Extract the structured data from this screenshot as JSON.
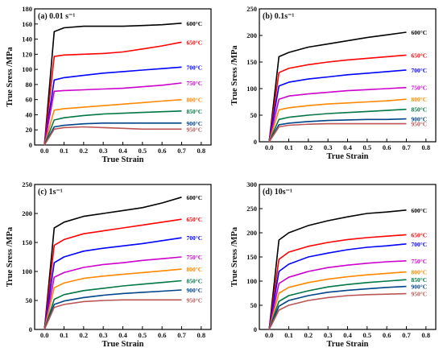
{
  "figure": {
    "series_colors": {
      "600°C": "#000000",
      "650°C": "#ff0000",
      "700°C": "#0000ff",
      "750°C": "#cc00cc",
      "800°C": "#ff8800",
      "850°C": "#007744",
      "900°C": "#004488",
      "950°C": "#bb5555"
    }
  },
  "chart_data": [
    {
      "type": "line",
      "title": "(a) 0.01 s⁻¹",
      "xlabel": "True Strain",
      "ylabel": "True Sress /MPa",
      "xlim": [
        -0.05,
        0.85
      ],
      "ylim": [
        0,
        180
      ],
      "xticks": [
        "0.0",
        "0.1",
        "0.2",
        "0.3",
        "0.4",
        "0.5",
        "0.6",
        "0.7",
        "0.8"
      ],
      "yticks": [
        "0",
        "20",
        "40",
        "60",
        "80",
        "100",
        "120",
        "140",
        "160",
        "180"
      ],
      "grid": false,
      "legend": "inline-right",
      "x": [
        0.0,
        0.05,
        0.1,
        0.2,
        0.3,
        0.4,
        0.5,
        0.6,
        0.7
      ],
      "series": [
        {
          "name": "600°C",
          "values": [
            0,
            150,
            155,
            157,
            157,
            157,
            158,
            159,
            161
          ]
        },
        {
          "name": "650°C",
          "values": [
            0,
            117,
            119,
            120,
            121,
            123,
            127,
            131,
            136
          ]
        },
        {
          "name": "700°C",
          "values": [
            0,
            86,
            89,
            92,
            95,
            97,
            99,
            101,
            103
          ]
        },
        {
          "name": "750°C",
          "values": [
            0,
            71,
            72,
            73,
            74,
            75,
            77,
            79,
            82
          ]
        },
        {
          "name": "800°C",
          "values": [
            0,
            46,
            48,
            50,
            52,
            54,
            56,
            58,
            60
          ]
        },
        {
          "name": "850°C",
          "values": [
            0,
            33,
            36,
            39,
            41,
            42,
            43,
            44,
            45
          ]
        },
        {
          "name": "900°C",
          "values": [
            0,
            24,
            26,
            28,
            29,
            29,
            29,
            29,
            29
          ]
        },
        {
          "name": "950°C",
          "values": [
            0,
            21,
            23,
            24,
            23,
            22,
            21,
            21,
            21
          ]
        }
      ]
    },
    {
      "type": "line",
      "title": "(b) 0.1s⁻¹",
      "xlabel": "True Strain",
      "ylabel": "True Sress /MPa",
      "xlim": [
        -0.05,
        0.85
      ],
      "ylim": [
        0,
        250
      ],
      "xticks": [
        "0.0",
        "0.1",
        "0.2",
        "0.3",
        "0.4",
        "0.5",
        "0.6",
        "0.7",
        "0.8"
      ],
      "yticks": [
        "0",
        "50",
        "100",
        "150",
        "200",
        "250"
      ],
      "grid": false,
      "legend": "inline-right",
      "x": [
        0.0,
        0.05,
        0.1,
        0.2,
        0.3,
        0.4,
        0.5,
        0.6,
        0.7
      ],
      "series": [
        {
          "name": "600°C",
          "values": [
            0,
            160,
            168,
            178,
            184,
            190,
            196,
            201,
            206
          ]
        },
        {
          "name": "650°C",
          "values": [
            0,
            130,
            138,
            145,
            150,
            154,
            157,
            160,
            163
          ]
        },
        {
          "name": "700°C",
          "values": [
            0,
            105,
            112,
            118,
            122,
            126,
            129,
            132,
            135
          ]
        },
        {
          "name": "750°C",
          "values": [
            0,
            80,
            86,
            90,
            93,
            96,
            98,
            100,
            102
          ]
        },
        {
          "name": "800°C",
          "values": [
            0,
            60,
            64,
            68,
            71,
            73,
            75,
            77,
            80
          ]
        },
        {
          "name": "850°C",
          "values": [
            0,
            42,
            46,
            50,
            53,
            55,
            57,
            59,
            61
          ]
        },
        {
          "name": "900°C",
          "values": [
            0,
            32,
            35,
            38,
            40,
            41,
            42,
            42,
            43
          ]
        },
        {
          "name": "950°C",
          "values": [
            0,
            28,
            31,
            33,
            34,
            34,
            34,
            34,
            34
          ]
        }
      ]
    },
    {
      "type": "line",
      "title": "(c) 1s⁻¹",
      "xlabel": "True Strain",
      "ylabel": "True Sress /MPa",
      "xlim": [
        -0.05,
        0.85
      ],
      "ylim": [
        0,
        250
      ],
      "xticks": [
        "0.0",
        "0.1",
        "0.2",
        "0.3",
        "0.4",
        "0.5",
        "0.6",
        "0.7",
        "0.8"
      ],
      "yticks": [
        "0",
        "50",
        "100",
        "150",
        "200",
        "250"
      ],
      "grid": false,
      "legend": "inline-right",
      "x": [
        0.0,
        0.05,
        0.1,
        0.2,
        0.3,
        0.4,
        0.5,
        0.6,
        0.7
      ],
      "series": [
        {
          "name": "600°C",
          "values": [
            0,
            175,
            185,
            195,
            200,
            205,
            210,
            218,
            228
          ]
        },
        {
          "name": "650°C",
          "values": [
            0,
            145,
            155,
            165,
            170,
            175,
            180,
            185,
            190
          ]
        },
        {
          "name": "700°C",
          "values": [
            0,
            115,
            125,
            135,
            140,
            144,
            148,
            153,
            158
          ]
        },
        {
          "name": "750°C",
          "values": [
            0,
            90,
            98,
            107,
            112,
            115,
            119,
            122,
            125
          ]
        },
        {
          "name": "800°C",
          "values": [
            0,
            72,
            80,
            88,
            92,
            95,
            98,
            101,
            104
          ]
        },
        {
          "name": "850°C",
          "values": [
            0,
            52,
            60,
            67,
            71,
            75,
            78,
            81,
            84
          ]
        },
        {
          "name": "900°C",
          "values": [
            0,
            43,
            49,
            55,
            59,
            62,
            64,
            66,
            68
          ]
        },
        {
          "name": "950°C",
          "values": [
            0,
            38,
            43,
            48,
            50,
            51,
            51,
            51,
            51
          ]
        }
      ]
    },
    {
      "type": "line",
      "title": "(d) 10s⁻¹",
      "xlabel": "True Strain",
      "ylabel": "True Sress /MPa",
      "xlim": [
        -0.05,
        0.85
      ],
      "ylim": [
        0,
        300
      ],
      "xticks": [
        "0.0",
        "0.1",
        "0.2",
        "0.3",
        "0.4",
        "0.5",
        "0.6",
        "0.7",
        "0.8"
      ],
      "yticks": [
        "0",
        "50",
        "100",
        "150",
        "200",
        "250",
        "300"
      ],
      "grid": false,
      "legend": "inline-right",
      "x": [
        0.0,
        0.05,
        0.1,
        0.2,
        0.3,
        0.4,
        0.5,
        0.6,
        0.7
      ],
      "series": [
        {
          "name": "600°C",
          "values": [
            0,
            185,
            200,
            215,
            225,
            233,
            240,
            243,
            247
          ]
        },
        {
          "name": "650°C",
          "values": [
            0,
            145,
            160,
            172,
            180,
            186,
            190,
            193,
            196
          ]
        },
        {
          "name": "700°C",
          "values": [
            0,
            120,
            135,
            150,
            158,
            165,
            170,
            173,
            177
          ]
        },
        {
          "name": "750°C",
          "values": [
            0,
            95,
            108,
            120,
            128,
            133,
            137,
            140,
            142
          ]
        },
        {
          "name": "800°C",
          "values": [
            0,
            75,
            87,
            97,
            104,
            109,
            113,
            116,
            119
          ]
        },
        {
          "name": "850°C",
          "values": [
            0,
            58,
            70,
            80,
            88,
            93,
            97,
            100,
            103
          ]
        },
        {
          "name": "900°C",
          "values": [
            0,
            48,
            60,
            70,
            77,
            81,
            84,
            87,
            89
          ]
        },
        {
          "name": "950°C",
          "values": [
            0,
            40,
            50,
            60,
            66,
            70,
            72,
            73,
            74
          ]
        }
      ]
    }
  ]
}
